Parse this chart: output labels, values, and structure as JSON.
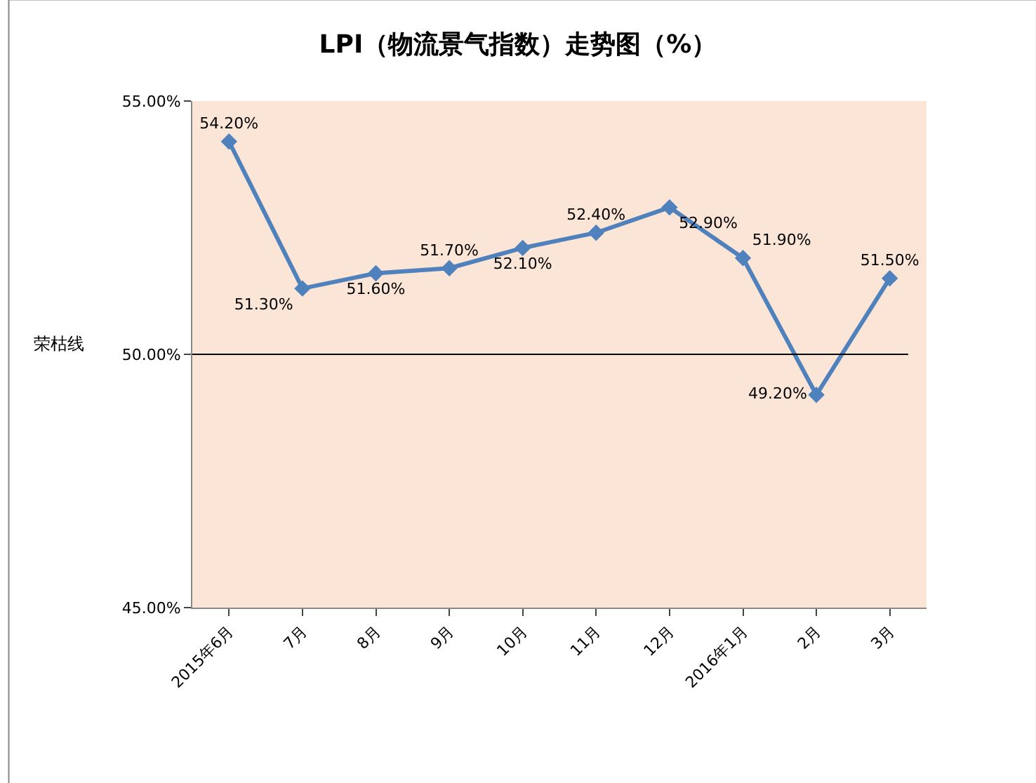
{
  "chart_data": {
    "type": "line",
    "title": "LPI（物流景气指数）走势图（%）",
    "categories": [
      "2015年6月",
      "7月",
      "8月",
      "9月",
      "10月",
      "11月",
      "12月",
      "2016年1月",
      "2月",
      "3月"
    ],
    "series": [
      {
        "color": "#4f81bd",
        "values": [
          54.2,
          51.3,
          51.6,
          51.7,
          52.1,
          52.4,
          52.9,
          51.9,
          49.2,
          51.5
        ],
        "value_labels": [
          "54.20%",
          "51.30%",
          "51.60%",
          "51.70%",
          "52.10%",
          "52.40%",
          "52.90%",
          "51.90%",
          "49.20%",
          "51.50%"
        ]
      }
    ],
    "ylim": [
      45,
      55
    ],
    "yticks": [
      {
        "value": 45,
        "label": "45.00%"
      },
      {
        "value": 50,
        "label": "50.00%"
      },
      {
        "value": 55,
        "label": "55.00%"
      }
    ],
    "ref_lines": [
      {
        "axis": "y",
        "value": 50,
        "label": "荣枯线",
        "color": "#000000"
      }
    ],
    "marker": "diamond",
    "line_style": "solid",
    "grid": false,
    "legend": false
  }
}
